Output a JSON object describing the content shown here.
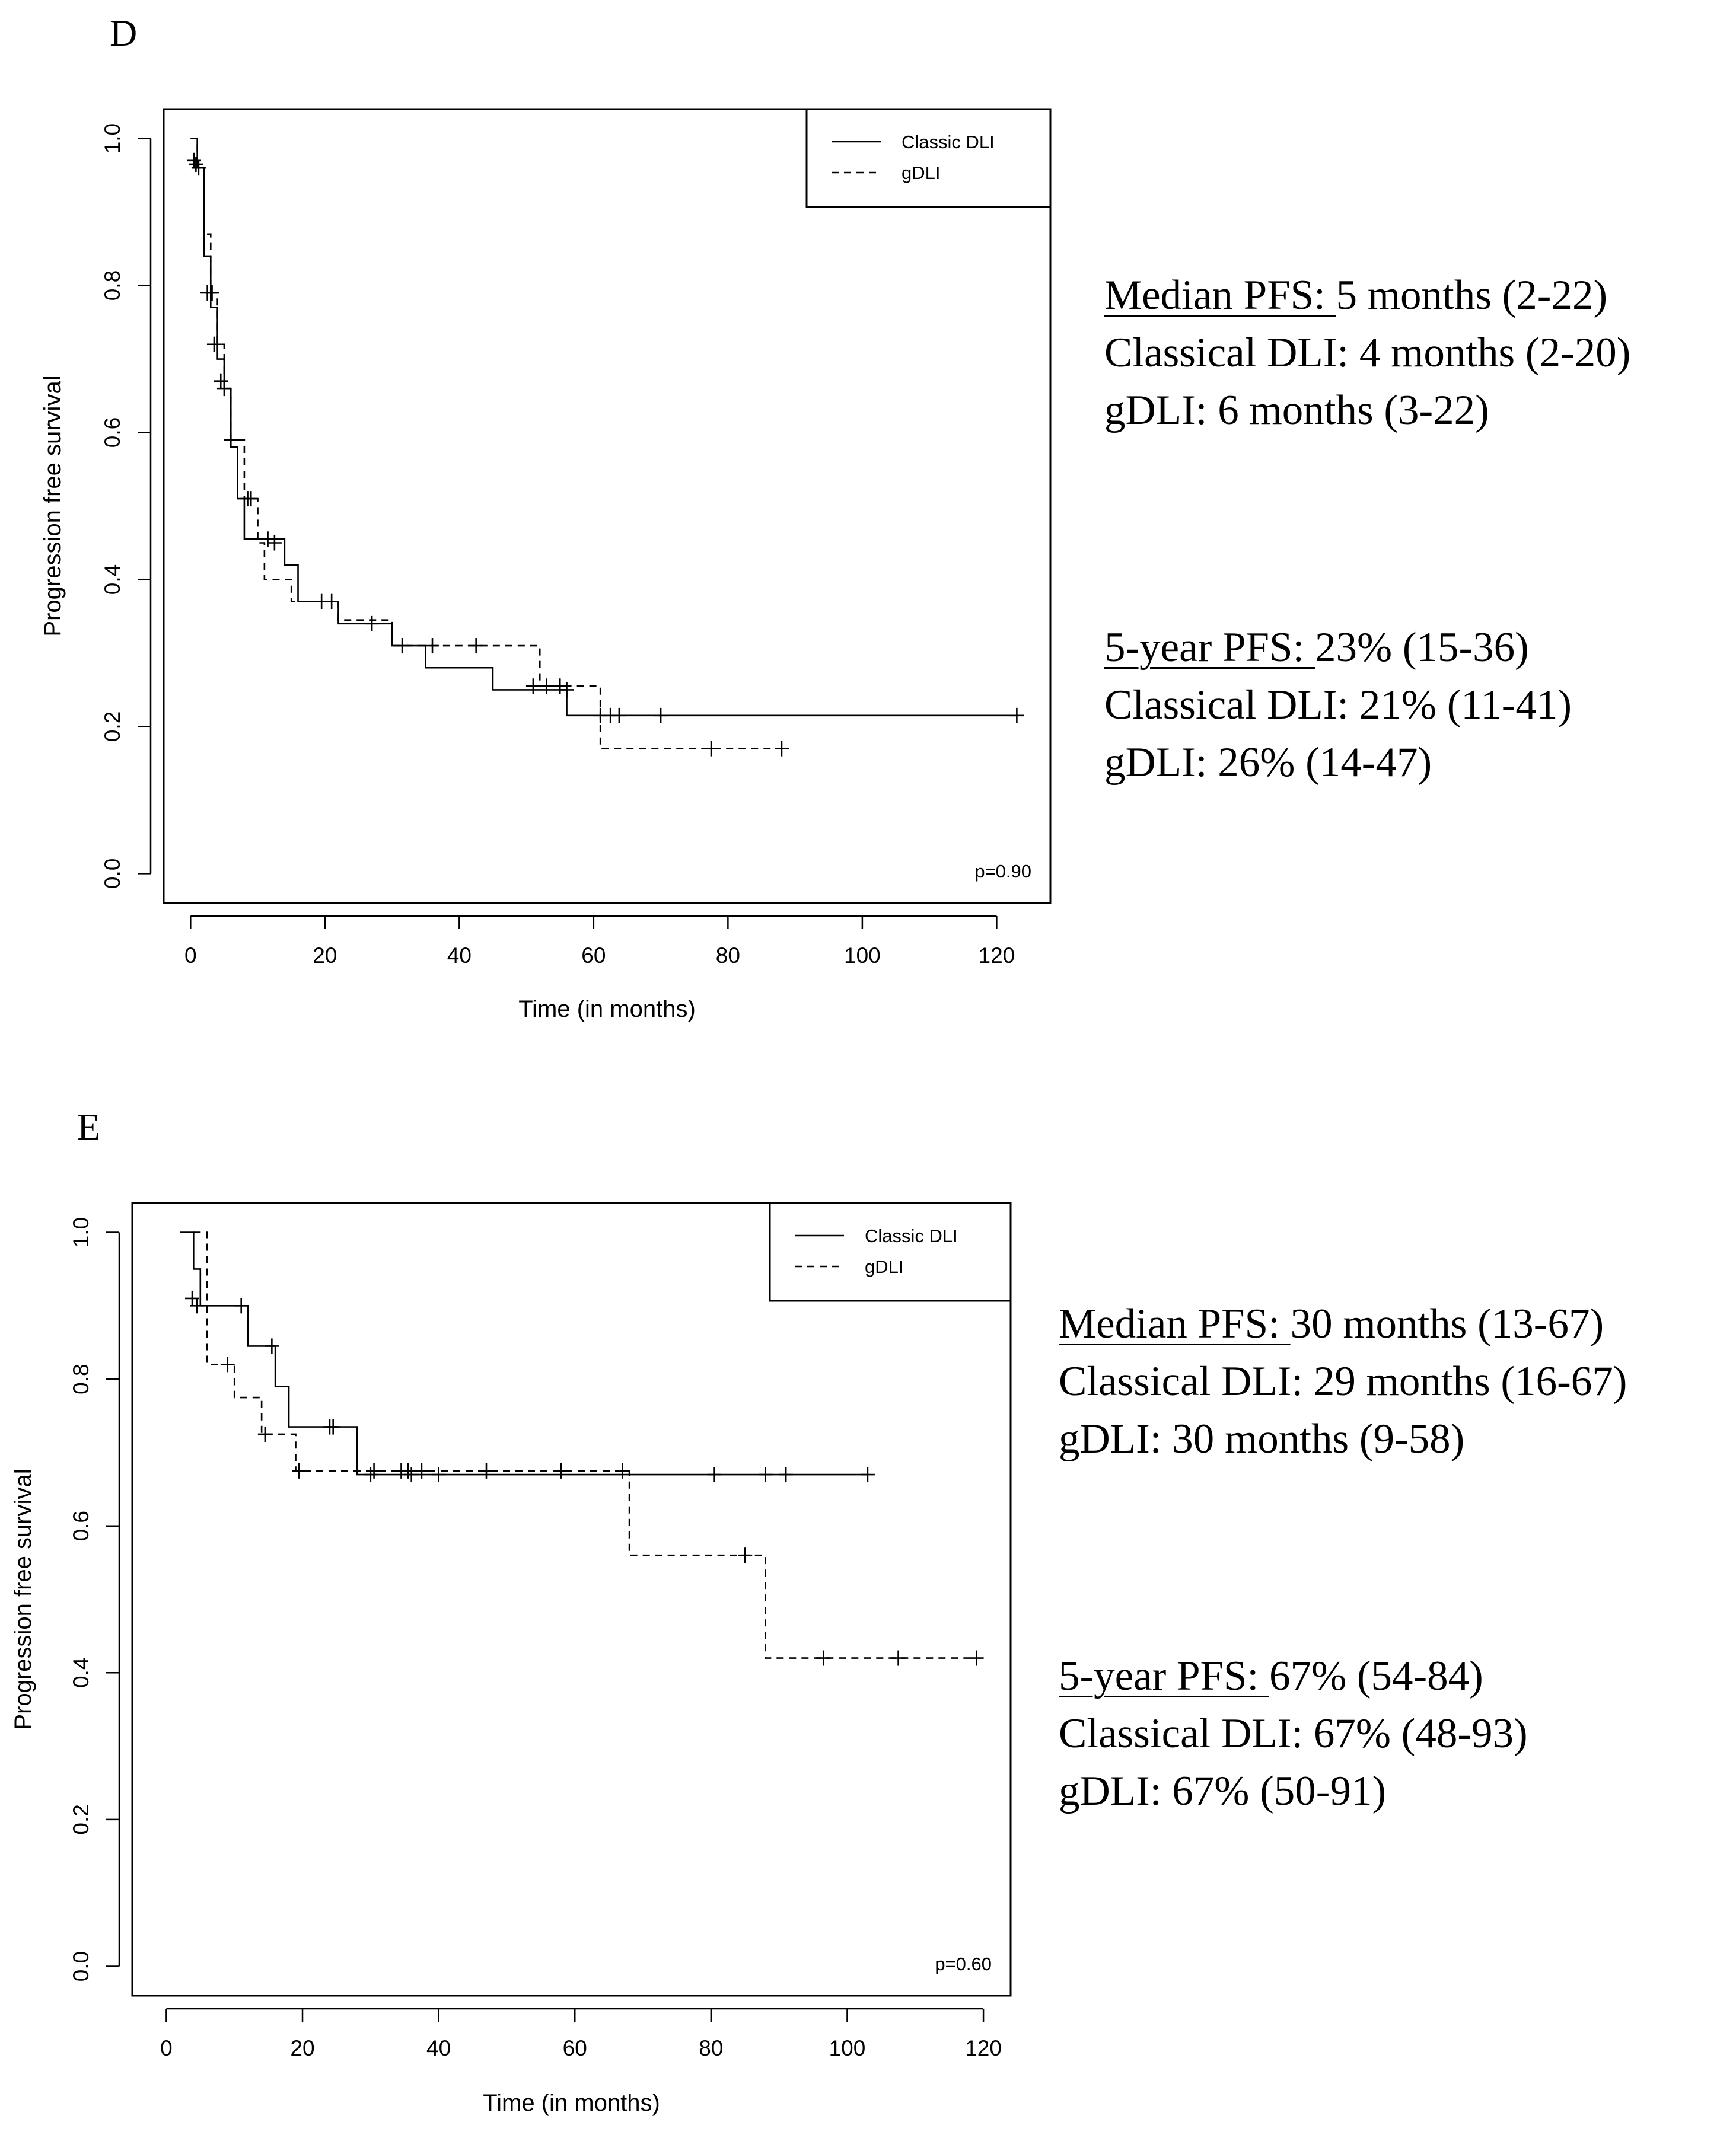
{
  "chart_data": [
    {
      "type": "line",
      "panel_label": "D",
      "title": "",
      "xlabel": "Time (in months)",
      "ylabel": "Progression free survival",
      "xlim": [
        -4,
        128
      ],
      "ylim": [
        -0.04,
        1.04
      ],
      "x_ticks": [
        0,
        20,
        40,
        60,
        80,
        100,
        120
      ],
      "y_ticks": [
        0.0,
        0.2,
        0.4,
        0.6,
        0.8,
        1.0
      ],
      "x_tick_labels": [
        "0",
        "20",
        "40",
        "60",
        "80",
        "100",
        "120"
      ],
      "y_tick_labels": [
        "0.0",
        "0.2",
        "0.4",
        "0.6",
        "0.8",
        "1.0"
      ],
      "legend": [
        "Classic DLI",
        "gDLI"
      ],
      "legend_position": "top-right",
      "annotation": "p=0.90",
      "series": [
        {
          "name": "Classic DLI",
          "style": "solid",
          "x": [
            0,
            1,
            2,
            3,
            4,
            5,
            6,
            7,
            8,
            12,
            14,
            16,
            20,
            22,
            30,
            35,
            45,
            56,
            60,
            123
          ],
          "y": [
            1.0,
            0.96,
            0.84,
            0.77,
            0.7,
            0.66,
            0.58,
            0.51,
            0.455,
            0.455,
            0.42,
            0.37,
            0.37,
            0.34,
            0.31,
            0.28,
            0.25,
            0.215,
            0.215,
            0.215
          ],
          "censored": [
            [
              0.5,
              0.97
            ],
            [
              1.2,
              0.96
            ],
            [
              3.5,
              0.72
            ],
            [
              11.5,
              0.455
            ],
            [
              21,
              0.37
            ],
            [
              27,
              0.34
            ],
            [
              56,
              0.25
            ],
            [
              61,
              0.215
            ],
            [
              62.5,
              0.215
            ],
            [
              63.8,
              0.215
            ],
            [
              70,
              0.215
            ],
            [
              123,
              0.215
            ]
          ]
        },
        {
          "name": "gDLI",
          "style": "dashed",
          "x": [
            0,
            1,
            2,
            3,
            4,
            5,
            6,
            8,
            10,
            11,
            12,
            15,
            20,
            22,
            30,
            50,
            52,
            60,
            61,
            88
          ],
          "y": [
            1.0,
            0.96,
            0.87,
            0.79,
            0.72,
            0.66,
            0.59,
            0.51,
            0.45,
            0.4,
            0.4,
            0.37,
            0.37,
            0.345,
            0.31,
            0.31,
            0.255,
            0.255,
            0.17,
            0.17
          ],
          "censored": [
            [
              0.8,
              0.965
            ],
            [
              2.5,
              0.79
            ],
            [
              3.2,
              0.79
            ],
            [
              4.5,
              0.67
            ],
            [
              5,
              0.66
            ],
            [
              6,
              0.59
            ],
            [
              8.5,
              0.51
            ],
            [
              9,
              0.51
            ],
            [
              12.5,
              0.45
            ],
            [
              19.5,
              0.37
            ],
            [
              31.5,
              0.31
            ],
            [
              36,
              0.31
            ],
            [
              42.5,
              0.31
            ],
            [
              51,
              0.255
            ],
            [
              53,
              0.255
            ],
            [
              55,
              0.255
            ],
            [
              77.5,
              0.17
            ],
            [
              88,
              0.17
            ]
          ]
        }
      ]
    },
    {
      "type": "line",
      "panel_label": "E",
      "title": "",
      "xlabel": "Time (in months)",
      "ylabel": "Progression free survival",
      "xlim": [
        -5,
        124
      ],
      "ylim": [
        -0.04,
        1.04
      ],
      "x_ticks": [
        0,
        20,
        40,
        60,
        80,
        100,
        120
      ],
      "y_ticks": [
        0.0,
        0.2,
        0.4,
        0.6,
        0.8,
        1.0
      ],
      "x_tick_labels": [
        "0",
        "20",
        "40",
        "60",
        "80",
        "100",
        "120"
      ],
      "y_tick_labels": [
        "0.0",
        "0.2",
        "0.4",
        "0.6",
        "0.8",
        "1.0"
      ],
      "legend": [
        "Classic DLI",
        "gDLI"
      ],
      "legend_position": "top-right",
      "annotation": "p=0.60",
      "series": [
        {
          "name": "Classic DLI",
          "style": "solid",
          "x": [
            2,
            4,
            5,
            12,
            16,
            18,
            28,
            103
          ],
          "y": [
            1.0,
            0.95,
            0.9,
            0.845,
            0.79,
            0.735,
            0.67,
            0.67
          ],
          "censored": [
            [
              4.5,
              0.9
            ],
            [
              11,
              0.9
            ],
            [
              15.5,
              0.845
            ],
            [
              24,
              0.735
            ],
            [
              24.5,
              0.735
            ],
            [
              30,
              0.67
            ],
            [
              36,
              0.67
            ],
            [
              40,
              0.67
            ],
            [
              80.5,
              0.67
            ],
            [
              88,
              0.67
            ],
            [
              91,
              0.67
            ],
            [
              103,
              0.67
            ]
          ]
        },
        {
          "name": "gDLI",
          "style": "dashed",
          "x": [
            4,
            6,
            10,
            14,
            19,
            68,
            88,
            119
          ],
          "y": [
            1.0,
            0.82,
            0.775,
            0.725,
            0.675,
            0.56,
            0.42,
            0.42
          ],
          "censored": [
            [
              3.8,
              0.91
            ],
            [
              9,
              0.82
            ],
            [
              14.5,
              0.725
            ],
            [
              19.5,
              0.675
            ],
            [
              30.5,
              0.675
            ],
            [
              34.5,
              0.675
            ],
            [
              35.5,
              0.675
            ],
            [
              37.5,
              0.675
            ],
            [
              47,
              0.675
            ],
            [
              58,
              0.675
            ],
            [
              67,
              0.675
            ],
            [
              85,
              0.56
            ],
            [
              96.5,
              0.42
            ],
            [
              107.5,
              0.42
            ],
            [
              119,
              0.42
            ]
          ]
        }
      ]
    }
  ],
  "summary_d": {
    "median_label": "Median PFS: ",
    "median_value": "5 months (2-22)",
    "median_classical": "Classical DLI: 4 months (2-20)",
    "median_gdli": "gDLI: 6 months (3-22)",
    "fiveyear_label": "5-year PFS: ",
    "fiveyear_value": "23% (15-36)",
    "fiveyear_classical": "Classical DLI: 21% (11-41)",
    "fiveyear_gdli": "gDLI: 26% (14-47)"
  },
  "summary_e": {
    "median_label": "Median PFS: ",
    "median_value": "30 months (13-67)",
    "median_classical": "Classical DLI: 29 months (16-67)",
    "median_gdli": "gDLI: 30 months (9-58)",
    "fiveyear_label": "5-year PFS: ",
    "fiveyear_value": "67% (54-84)",
    "fiveyear_classical": "Classical DLI: 67% (48-93)",
    "fiveyear_gdli": "gDLI: 67% (50-91)"
  }
}
